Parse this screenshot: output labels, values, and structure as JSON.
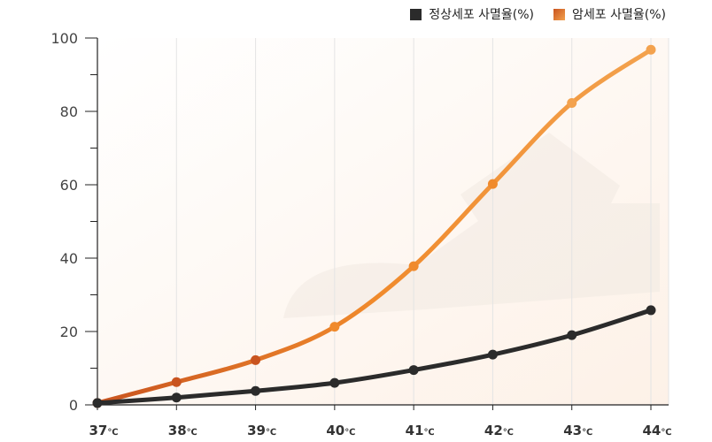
{
  "colors": {
    "normal": "#2b2b2b",
    "cancer_start": "#c9541f",
    "cancer_mid": "#f08a2c",
    "cancer_end": "#f3a24e",
    "axis": "#222222",
    "grid": "#e4e4e4"
  },
  "chart_data": {
    "type": "line",
    "categories": [
      "37",
      "38",
      "39",
      "40",
      "41",
      "42",
      "43",
      "44"
    ],
    "unit": "℃",
    "ylim": [
      0,
      100
    ],
    "yticks": [
      0,
      20,
      40,
      60,
      80,
      100
    ],
    "grid": true,
    "legend_position": "top-right",
    "series": [
      {
        "name": "정상세포 사멸율(%)",
        "key": "normal",
        "values": [
          0.5,
          2,
          3.8,
          6,
          9.5,
          13.7,
          19,
          25.8
        ]
      },
      {
        "name": "암세포 사멸율(%)",
        "key": "cancer",
        "values": [
          0.5,
          6.2,
          12.2,
          21.3,
          37.8,
          60.2,
          82.3,
          96.8
        ]
      }
    ]
  }
}
